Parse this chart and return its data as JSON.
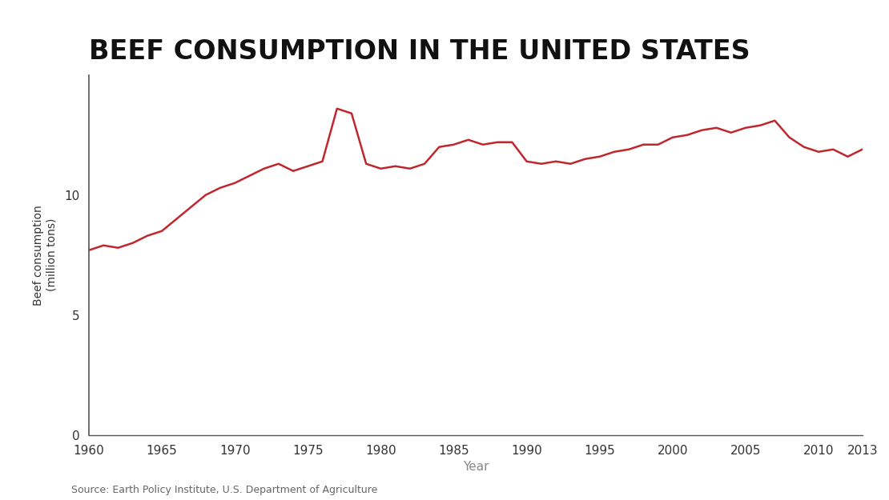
{
  "title": "BEEF CONSUMPTION IN THE UNITED STATES",
  "xlabel": "Year",
  "ylabel": "Beef consumption\n(million tons)",
  "source": "Source: Earth Policy Institute, U.S. Department of Agriculture",
  "line_color": "#c0272d",
  "background_color": "#ffffff",
  "xlim": [
    1960,
    2013
  ],
  "ylim": [
    0,
    15
  ],
  "yticks": [
    0,
    5,
    10
  ],
  "xticks": [
    1960,
    1965,
    1970,
    1975,
    1980,
    1985,
    1990,
    1995,
    2000,
    2005,
    2010,
    2013
  ],
  "years": [
    1960,
    1961,
    1962,
    1963,
    1964,
    1965,
    1966,
    1967,
    1968,
    1969,
    1970,
    1971,
    1972,
    1973,
    1974,
    1975,
    1976,
    1977,
    1978,
    1979,
    1980,
    1981,
    1982,
    1983,
    1984,
    1985,
    1986,
    1987,
    1988,
    1989,
    1990,
    1991,
    1992,
    1993,
    1994,
    1995,
    1996,
    1997,
    1998,
    1999,
    2000,
    2001,
    2002,
    2003,
    2004,
    2005,
    2006,
    2007,
    2008,
    2009,
    2010,
    2011,
    2012,
    2013
  ],
  "values": [
    7.7,
    7.9,
    7.8,
    8.0,
    8.3,
    8.5,
    9.0,
    9.5,
    10.0,
    10.3,
    10.5,
    10.8,
    11.1,
    11.3,
    11.0,
    11.2,
    11.4,
    13.6,
    13.4,
    11.3,
    11.1,
    11.2,
    11.1,
    11.3,
    12.0,
    12.1,
    12.3,
    12.1,
    12.2,
    12.2,
    11.4,
    11.3,
    11.4,
    11.3,
    11.5,
    11.6,
    11.8,
    11.9,
    12.1,
    12.1,
    12.4,
    12.5,
    12.7,
    12.8,
    12.6,
    12.8,
    12.9,
    13.1,
    12.4,
    12.0,
    11.8,
    11.9,
    11.6,
    11.9
  ]
}
